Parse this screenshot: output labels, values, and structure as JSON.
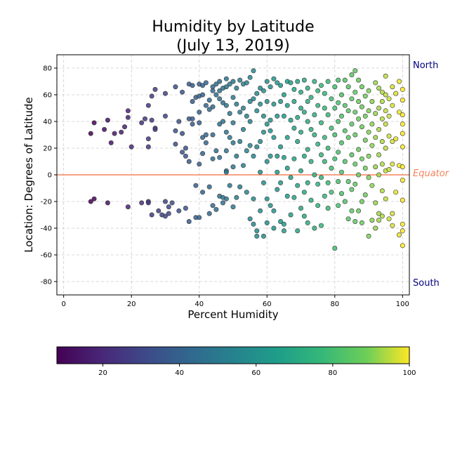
{
  "chart_data": {
    "type": "scatter",
    "title_line1": "Humidity by Latitude",
    "title_line2": "(July 13, 2019)",
    "xlabel": "Percent Humidity",
    "ylabel": "Location: Degrees of Latitude",
    "xlim": [
      -2,
      102
    ],
    "ylim": [
      -90,
      90
    ],
    "xticks": [
      0,
      20,
      40,
      60,
      80,
      100
    ],
    "yticks": [
      -80,
      -60,
      -40,
      -20,
      0,
      20,
      40,
      60,
      80
    ],
    "grid": true,
    "colormap": "viridis",
    "colorbar": {
      "range": [
        8,
        100
      ],
      "ticks": [
        20,
        40,
        60,
        80,
        100
      ]
    },
    "reference_line": {
      "y": 0,
      "label": "Equator",
      "color": "#f4845f"
    },
    "annotations": [
      {
        "text": "North",
        "y": 82,
        "color": "#000080"
      },
      {
        "text": "South",
        "y": -82,
        "color": "#000080"
      }
    ],
    "points": [
      [
        8,
        31
      ],
      [
        8,
        -20
      ],
      [
        9,
        -18
      ],
      [
        9,
        39
      ],
      [
        12,
        34
      ],
      [
        13,
        -21
      ],
      [
        13,
        41
      ],
      [
        14,
        24
      ],
      [
        15,
        31
      ],
      [
        17,
        32
      ],
      [
        18,
        36
      ],
      [
        19,
        48
      ],
      [
        19,
        43
      ],
      [
        19,
        -24
      ],
      [
        20,
        21
      ],
      [
        23,
        -21
      ],
      [
        23,
        39
      ],
      [
        24,
        42
      ],
      [
        25,
        52
      ],
      [
        25,
        27
      ],
      [
        25,
        21
      ],
      [
        25,
        -20
      ],
      [
        25,
        -21
      ],
      [
        26,
        -30
      ],
      [
        26,
        59
      ],
      [
        26,
        41
      ],
      [
        27,
        64
      ],
      [
        27,
        35
      ],
      [
        27,
        34
      ],
      [
        28,
        -27
      ],
      [
        29,
        -30
      ],
      [
        30,
        -31
      ],
      [
        30,
        44
      ],
      [
        30,
        61
      ],
      [
        30,
        -20
      ],
      [
        31,
        -24
      ],
      [
        31,
        -29
      ],
      [
        32,
        -21
      ],
      [
        33,
        66
      ],
      [
        33,
        33
      ],
      [
        33,
        23
      ],
      [
        34,
        -27
      ],
      [
        34,
        40
      ],
      [
        35,
        62
      ],
      [
        35,
        31
      ],
      [
        35,
        17
      ],
      [
        36,
        20
      ],
      [
        36,
        14
      ],
      [
        36,
        -25
      ],
      [
        37,
        68
      ],
      [
        37,
        42
      ],
      [
        37,
        10
      ],
      [
        37,
        -35
      ],
      [
        38,
        67
      ],
      [
        38,
        55
      ],
      [
        38,
        38
      ],
      [
        38,
        42
      ],
      [
        39,
        58
      ],
      [
        39,
        -8
      ],
      [
        39,
        -32
      ],
      [
        40,
        68
      ],
      [
        40,
        59
      ],
      [
        40,
        47
      ],
      [
        40,
        39
      ],
      [
        40,
        8
      ],
      [
        40,
        -32
      ],
      [
        41,
        67
      ],
      [
        41,
        60
      ],
      [
        41,
        28
      ],
      [
        41,
        16
      ],
      [
        41,
        -13
      ],
      [
        42,
        69
      ],
      [
        42,
        52
      ],
      [
        42,
        30
      ],
      [
        42,
        24
      ],
      [
        43,
        56
      ],
      [
        43,
        49
      ],
      [
        43,
        -9
      ],
      [
        43,
        -29
      ],
      [
        44,
        66
      ],
      [
        44,
        63
      ],
      [
        44,
        51
      ],
      [
        44,
        30
      ],
      [
        44,
        12
      ],
      [
        44,
        -23
      ],
      [
        45,
        68
      ],
      [
        45,
        60
      ],
      [
        45,
        18
      ],
      [
        45,
        -26
      ],
      [
        46,
        70
      ],
      [
        46,
        63
      ],
      [
        46,
        57
      ],
      [
        46,
        38
      ],
      [
        46,
        13
      ],
      [
        46,
        -16
      ],
      [
        47,
        65
      ],
      [
        47,
        54
      ],
      [
        47,
        40
      ],
      [
        47,
        -17
      ],
      [
        47,
        -21
      ],
      [
        48,
        72
      ],
      [
        48,
        66
      ],
      [
        48,
        52
      ],
      [
        48,
        32
      ],
      [
        48,
        18
      ],
      [
        48,
        3
      ],
      [
        48,
        2
      ],
      [
        48,
        -18
      ],
      [
        49,
        68
      ],
      [
        49,
        46
      ],
      [
        49,
        28
      ],
      [
        49,
        -8
      ],
      [
        50,
        70
      ],
      [
        50,
        58
      ],
      [
        50,
        39
      ],
      [
        50,
        24
      ],
      [
        50,
        6
      ],
      [
        50,
        -24
      ],
      [
        51,
        65
      ],
      [
        51,
        53
      ],
      [
        51,
        14
      ],
      [
        51,
        -17
      ],
      [
        52,
        71
      ],
      [
        52,
        47
      ],
      [
        52,
        25
      ],
      [
        52,
        -9
      ],
      [
        53,
        68
      ],
      [
        53,
        50
      ],
      [
        53,
        34
      ],
      [
        53,
        7
      ],
      [
        54,
        69
      ],
      [
        54,
        44
      ],
      [
        54,
        18
      ],
      [
        54,
        -13
      ],
      [
        55,
        73
      ],
      [
        55,
        55
      ],
      [
        55,
        40
      ],
      [
        55,
        22
      ],
      [
        55,
        -33
      ],
      [
        56,
        78
      ],
      [
        56,
        57
      ],
      [
        56,
        14
      ],
      [
        56,
        -18
      ],
      [
        56,
        -37
      ],
      [
        57,
        61
      ],
      [
        57,
        48
      ],
      [
        57,
        21
      ],
      [
        57,
        -42
      ],
      [
        57,
        -46
      ],
      [
        58,
        65
      ],
      [
        58,
        53
      ],
      [
        58,
        25
      ],
      [
        58,
        2
      ],
      [
        58,
        -27
      ],
      [
        59,
        63
      ],
      [
        59,
        44
      ],
      [
        59,
        32
      ],
      [
        59,
        -6
      ],
      [
        59,
        -46
      ],
      [
        60,
        70
      ],
      [
        60,
        55
      ],
      [
        60,
        38
      ],
      [
        60,
        10
      ],
      [
        60,
        -18
      ],
      [
        60,
        -36
      ],
      [
        61,
        66
      ],
      [
        61,
        41
      ],
      [
        61,
        33
      ],
      [
        61,
        14
      ],
      [
        61,
        -23
      ],
      [
        62,
        72
      ],
      [
        62,
        53
      ],
      [
        62,
        28
      ],
      [
        62,
        -27
      ],
      [
        62,
        -40
      ],
      [
        63,
        69
      ],
      [
        63,
        44
      ],
      [
        63,
        14
      ],
      [
        63,
        2
      ],
      [
        63,
        -11
      ],
      [
        64,
        67
      ],
      [
        64,
        55
      ],
      [
        64,
        21
      ],
      [
        64,
        -6
      ],
      [
        64,
        -35
      ],
      [
        65,
        60
      ],
      [
        65,
        44
      ],
      [
        65,
        13
      ],
      [
        65,
        -37
      ],
      [
        65,
        -42
      ],
      [
        66,
        70
      ],
      [
        66,
        52
      ],
      [
        66,
        28
      ],
      [
        66,
        5
      ],
      [
        66,
        -16
      ],
      [
        67,
        69
      ],
      [
        67,
        41
      ],
      [
        67,
        -2
      ],
      [
        67,
        -30
      ],
      [
        68,
        64
      ],
      [
        68,
        55
      ],
      [
        68,
        35
      ],
      [
        68,
        12
      ],
      [
        68,
        -17
      ],
      [
        69,
        70
      ],
      [
        69,
        43
      ],
      [
        69,
        25
      ],
      [
        69,
        -8
      ],
      [
        69,
        -42
      ],
      [
        70,
        62
      ],
      [
        70,
        50
      ],
      [
        70,
        32
      ],
      [
        70,
        3
      ],
      [
        70,
        -25
      ],
      [
        71,
        71
      ],
      [
        71,
        47
      ],
      [
        71,
        14
      ],
      [
        71,
        -13
      ],
      [
        71,
        -31
      ],
      [
        72,
        65
      ],
      [
        72,
        55
      ],
      [
        72,
        40
      ],
      [
        72,
        19
      ],
      [
        72,
        -6
      ],
      [
        72,
        -36
      ],
      [
        73,
        58
      ],
      [
        73,
        34
      ],
      [
        73,
        10
      ],
      [
        73,
        -19
      ],
      [
        74,
        70
      ],
      [
        74,
        45
      ],
      [
        74,
        30
      ],
      [
        74,
        0
      ],
      [
        74,
        -40
      ],
      [
        75,
        63
      ],
      [
        75,
        52
      ],
      [
        75,
        23
      ],
      [
        75,
        -7
      ],
      [
        75,
        -23
      ],
      [
        76,
        67
      ],
      [
        76,
        39
      ],
      [
        76,
        15
      ],
      [
        76,
        -2
      ],
      [
        76,
        -38
      ],
      [
        77,
        61
      ],
      [
        77,
        50
      ],
      [
        77,
        28
      ],
      [
        77,
        10
      ],
      [
        77,
        -16
      ],
      [
        78,
        70
      ],
      [
        78,
        45
      ],
      [
        78,
        20
      ],
      [
        78,
        -6
      ],
      [
        78,
        -25
      ],
      [
        79,
        57
      ],
      [
        79,
        35
      ],
      [
        79,
        5
      ],
      [
        79,
        -13
      ],
      [
        80,
        66
      ],
      [
        80,
        50
      ],
      [
        80,
        30
      ],
      [
        80,
        12
      ],
      [
        80,
        -55
      ],
      [
        81,
        71
      ],
      [
        81,
        54
      ],
      [
        81,
        40
      ],
      [
        81,
        17
      ],
      [
        81,
        -5
      ],
      [
        81,
        -23
      ],
      [
        82,
        60
      ],
      [
        82,
        44
      ],
      [
        82,
        24
      ],
      [
        82,
        2
      ],
      [
        82,
        -14
      ],
      [
        83,
        71
      ],
      [
        83,
        52
      ],
      [
        83,
        33
      ],
      [
        83,
        10
      ],
      [
        83,
        -20
      ],
      [
        84,
        66
      ],
      [
        84,
        48
      ],
      [
        84,
        28
      ],
      [
        84,
        -5
      ],
      [
        84,
        -33
      ],
      [
        85,
        75
      ],
      [
        85,
        57
      ],
      [
        85,
        38
      ],
      [
        85,
        15
      ],
      [
        85,
        -11
      ],
      [
        85,
        -27
      ],
      [
        86,
        78
      ],
      [
        86,
        62
      ],
      [
        86,
        47
      ],
      [
        86,
        30
      ],
      [
        86,
        8
      ],
      [
        86,
        -7
      ],
      [
        86,
        -35
      ],
      [
        87,
        71
      ],
      [
        87,
        55
      ],
      [
        87,
        42
      ],
      [
        87,
        19
      ],
      [
        87,
        0
      ],
      [
        87,
        -27
      ],
      [
        88,
        66
      ],
      [
        88,
        51
      ],
      [
        88,
        36
      ],
      [
        88,
        12
      ],
      [
        88,
        -20
      ],
      [
        88,
        -36
      ],
      [
        89,
        59
      ],
      [
        89,
        44
      ],
      [
        89,
        26
      ],
      [
        89,
        5
      ],
      [
        89,
        -15
      ],
      [
        90,
        63
      ],
      [
        90,
        48
      ],
      [
        90,
        32
      ],
      [
        90,
        14
      ],
      [
        90,
        -2
      ],
      [
        90,
        -46
      ],
      [
        91,
        55
      ],
      [
        91,
        38
      ],
      [
        91,
        22
      ],
      [
        91,
        -8
      ],
      [
        91,
        -34
      ],
      [
        92,
        69
      ],
      [
        92,
        46
      ],
      [
        92,
        28
      ],
      [
        92,
        6
      ],
      [
        92,
        -21
      ],
      [
        92,
        -40
      ],
      [
        93,
        65
      ],
      [
        93,
        50
      ],
      [
        93,
        34
      ],
      [
        93,
        15
      ],
      [
        93,
        0
      ],
      [
        93,
        -29
      ],
      [
        93,
        -34
      ],
      [
        94,
        62
      ],
      [
        94,
        55
      ],
      [
        94,
        42
      ],
      [
        94,
        25
      ],
      [
        94,
        8
      ],
      [
        94,
        -12
      ],
      [
        94,
        -31
      ],
      [
        95,
        74
      ],
      [
        95,
        60
      ],
      [
        95,
        48
      ],
      [
        95,
        38
      ],
      [
        95,
        20
      ],
      [
        95,
        3
      ],
      [
        95,
        -18
      ],
      [
        96,
        57
      ],
      [
        96,
        44
      ],
      [
        96,
        29
      ],
      [
        96,
        4
      ],
      [
        96,
        -33
      ],
      [
        97,
        66
      ],
      [
        97,
        52
      ],
      [
        97,
        25
      ],
      [
        97,
        8
      ],
      [
        97,
        -29
      ],
      [
        97,
        -38
      ],
      [
        98,
        61
      ],
      [
        98,
        27
      ],
      [
        98,
        -13
      ],
      [
        99,
        70
      ],
      [
        99,
        47
      ],
      [
        99,
        7
      ],
      [
        99,
        -45
      ],
      [
        100,
        64
      ],
      [
        100,
        56
      ],
      [
        100,
        45
      ],
      [
        100,
        38
      ],
      [
        100,
        31
      ],
      [
        100,
        21
      ],
      [
        100,
        6
      ],
      [
        100,
        -4
      ],
      [
        100,
        -19
      ],
      [
        100,
        -37
      ],
      [
        100,
        -42
      ],
      [
        100,
        -53
      ]
    ]
  }
}
